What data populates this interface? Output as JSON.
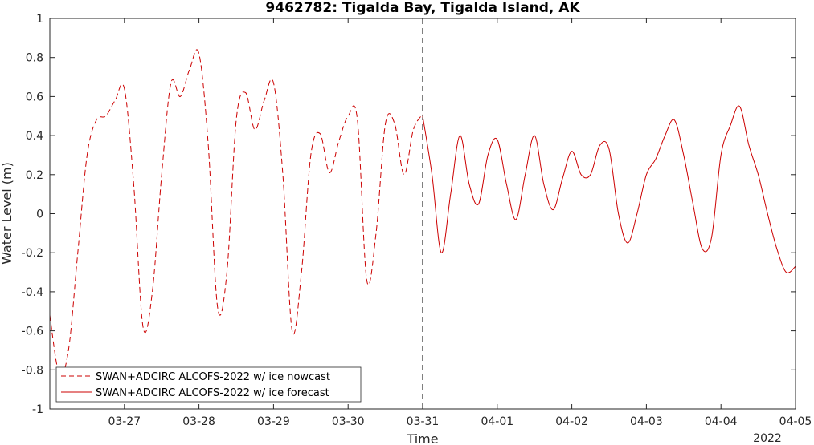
{
  "chart_data": {
    "type": "line",
    "title": "9462782: Tigalda Bay, Tigalda Island, AK",
    "xlabel": "Time",
    "ylabel": "Water Level (m)",
    "year_label": "2022",
    "xlim": [
      "2022-03-26T00:00",
      "2022-04-05T00:00"
    ],
    "ylim": [
      -1,
      1
    ],
    "yticks": [
      -1,
      -0.8,
      -0.6,
      -0.4,
      -0.2,
      0,
      0.2,
      0.4,
      0.6,
      0.8,
      1
    ],
    "ytick_labels": [
      "-1",
      "-0.8",
      "-0.6",
      "-0.4",
      "-0.2",
      "0",
      "0.2",
      "0.4",
      "0.6",
      "0.8",
      "1"
    ],
    "xticks": [
      "2022-03-27",
      "2022-03-28",
      "2022-03-29",
      "2022-03-30",
      "2022-03-31",
      "2022-04-01",
      "2022-04-02",
      "2022-04-03",
      "2022-04-04",
      "2022-04-05"
    ],
    "xtick_labels": [
      "03-27",
      "03-28",
      "03-29",
      "03-30",
      "03-31",
      "04-01",
      "04-02",
      "04-03",
      "04-04",
      "04-05"
    ],
    "vertical_marker": "2022-03-31T00:00",
    "grid": false,
    "legend_position": "bottom-left",
    "line_color": "#cc0000",
    "series": [
      {
        "name": "SWAN+ADCIRC ALCOFS-2022 w/ ice nowcast",
        "style": "dashed",
        "x": [
          "2022-03-26T00:00",
          "2022-03-26T03:00",
          "2022-03-26T06:00",
          "2022-03-26T09:00",
          "2022-03-26T12:00",
          "2022-03-26T15:00",
          "2022-03-26T18:00",
          "2022-03-26T21:00",
          "2022-03-27T00:00",
          "2022-03-27T03:00",
          "2022-03-27T06:00",
          "2022-03-27T09:00",
          "2022-03-27T12:00",
          "2022-03-27T15:00",
          "2022-03-27T18:00",
          "2022-03-27T21:00",
          "2022-03-28T00:00",
          "2022-03-28T03:00",
          "2022-03-28T06:00",
          "2022-03-28T09:00",
          "2022-03-28T12:00",
          "2022-03-28T15:00",
          "2022-03-28T18:00",
          "2022-03-28T21:00",
          "2022-03-29T00:00",
          "2022-03-29T03:00",
          "2022-03-29T06:00",
          "2022-03-29T09:00",
          "2022-03-29T12:00",
          "2022-03-29T15:00",
          "2022-03-29T18:00",
          "2022-03-29T21:00",
          "2022-03-30T00:00",
          "2022-03-30T03:00",
          "2022-03-30T06:00",
          "2022-03-30T09:00",
          "2022-03-30T12:00",
          "2022-03-30T15:00",
          "2022-03-30T18:00",
          "2022-03-30T21:00",
          "2022-03-31T00:00"
        ],
        "y": [
          -0.52,
          -0.82,
          -0.7,
          -0.2,
          0.3,
          0.48,
          0.5,
          0.58,
          0.64,
          0.15,
          -0.58,
          -0.4,
          0.2,
          0.67,
          0.6,
          0.74,
          0.82,
          0.35,
          -0.48,
          -0.3,
          0.48,
          0.62,
          0.43,
          0.58,
          0.67,
          0.2,
          -0.6,
          -0.3,
          0.3,
          0.41,
          0.21,
          0.37,
          0.5,
          0.48,
          -0.34,
          -0.1,
          0.46,
          0.46,
          0.2,
          0.43,
          0.51
        ]
      },
      {
        "name": "SWAN+ADCIRC ALCOFS-2022 w/ ice forecast",
        "style": "solid",
        "x": [
          "2022-03-31T00:00",
          "2022-03-31T03:00",
          "2022-03-31T06:00",
          "2022-03-31T09:00",
          "2022-03-31T12:00",
          "2022-03-31T15:00",
          "2022-03-31T18:00",
          "2022-03-31T21:00",
          "2022-04-01T00:00",
          "2022-04-01T03:00",
          "2022-04-01T06:00",
          "2022-04-01T09:00",
          "2022-04-01T12:00",
          "2022-04-01T15:00",
          "2022-04-01T18:00",
          "2022-04-01T21:00",
          "2022-04-02T00:00",
          "2022-04-02T03:00",
          "2022-04-02T06:00",
          "2022-04-02T09:00",
          "2022-04-02T12:00",
          "2022-04-02T15:00",
          "2022-04-02T18:00",
          "2022-04-02T21:00",
          "2022-04-03T00:00",
          "2022-04-03T03:00",
          "2022-04-03T06:00",
          "2022-04-03T09:00",
          "2022-04-03T12:00",
          "2022-04-03T15:00",
          "2022-04-03T18:00",
          "2022-04-03T21:00",
          "2022-04-04T00:00",
          "2022-04-04T03:00",
          "2022-04-04T06:00",
          "2022-04-04T09:00",
          "2022-04-04T12:00",
          "2022-04-04T15:00",
          "2022-04-04T18:00",
          "2022-04-04T21:00",
          "2022-04-05T00:00"
        ],
        "y": [
          0.5,
          0.2,
          -0.2,
          0.1,
          0.4,
          0.15,
          0.05,
          0.3,
          0.38,
          0.15,
          -0.03,
          0.2,
          0.4,
          0.15,
          0.02,
          0.18,
          0.32,
          0.2,
          0.2,
          0.35,
          0.33,
          0.0,
          -0.15,
          0.0,
          0.2,
          0.28,
          0.4,
          0.48,
          0.3,
          0.05,
          -0.18,
          -0.12,
          0.3,
          0.45,
          0.55,
          0.35,
          0.2,
          0.0,
          -0.18,
          -0.3,
          -0.27
        ]
      }
    ]
  }
}
